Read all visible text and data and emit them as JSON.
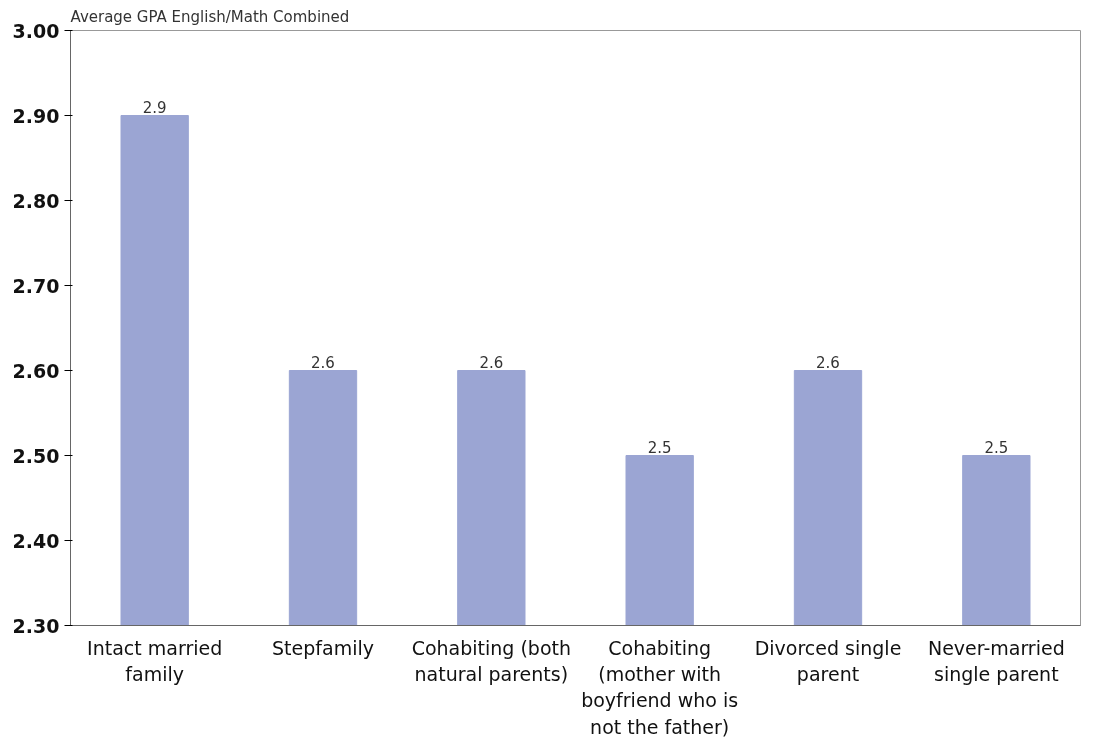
{
  "chart_data": {
    "type": "bar",
    "ylabel": "Average GPA English/Math Combined",
    "categories": [
      "Intact married family",
      "Stepfamily",
      "Cohabiting (both natural parents)",
      "Cohabiting (mother with boyfriend who is not the father)",
      "Divorced single parent",
      "Never-married single parent"
    ],
    "values": [
      2.9,
      2.6,
      2.6,
      2.5,
      2.6,
      2.5
    ],
    "color": "#9ba5d3",
    "ylim": [
      2.3,
      3.0
    ],
    "yticks": [
      {
        "value": 2.3,
        "label": "2.30"
      },
      {
        "value": 2.4,
        "label": "2.40"
      },
      {
        "value": 2.5,
        "label": "2.50"
      },
      {
        "value": 2.6,
        "label": "2.60"
      },
      {
        "value": 2.7,
        "label": "2.70"
      },
      {
        "value": 2.8,
        "label": "2.80"
      },
      {
        "value": 2.9,
        "label": "2.90"
      },
      {
        "value": 3.0,
        "label": "3.00"
      }
    ],
    "data_labels": true,
    "grid": false
  }
}
